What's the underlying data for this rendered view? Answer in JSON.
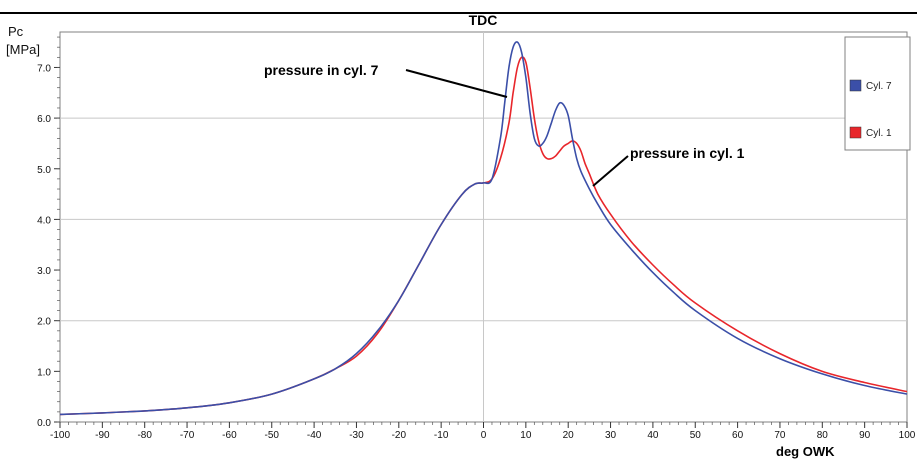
{
  "chart_data": {
    "type": "line",
    "title": "TDC",
    "ylabel_line1": "Pc",
    "ylabel_line2": "[MPa]",
    "xlabel": "deg  OWK",
    "xlim": [
      -100,
      100
    ],
    "ylim": [
      0,
      7.7
    ],
    "x_ticks": [
      {
        "value": -100,
        "label": "-100"
      },
      {
        "value": -90,
        "label": "-90"
      },
      {
        "value": -80,
        "label": "-80"
      },
      {
        "value": -70,
        "label": "-70"
      },
      {
        "value": -60,
        "label": "-60"
      },
      {
        "value": -50,
        "label": "-50"
      },
      {
        "value": -40,
        "label": "-40"
      },
      {
        "value": -30,
        "label": "-30"
      },
      {
        "value": -20,
        "label": "-20"
      },
      {
        "value": -10,
        "label": "-10"
      },
      {
        "value": 0,
        "label": "0"
      },
      {
        "value": 10,
        "label": "10"
      },
      {
        "value": 20,
        "label": "20"
      },
      {
        "value": 30,
        "label": "30"
      },
      {
        "value": 40,
        "label": "40"
      },
      {
        "value": 50,
        "label": "50"
      },
      {
        "value": 60,
        "label": "60"
      },
      {
        "value": 70,
        "label": "70"
      },
      {
        "value": 80,
        "label": "80"
      },
      {
        "value": 90,
        "label": "90"
      },
      {
        "value": 100,
        "label": "100"
      }
    ],
    "y_ticks": [
      {
        "value": 0,
        "label": "0.0"
      },
      {
        "value": 1,
        "label": "1.0"
      },
      {
        "value": 2,
        "label": "2.0"
      },
      {
        "value": 3,
        "label": "3.0"
      },
      {
        "value": 4,
        "label": "4.0"
      },
      {
        "value": 5,
        "label": "5.0"
      },
      {
        "value": 6,
        "label": "6.0"
      },
      {
        "value": 7,
        "label": "7.0"
      }
    ],
    "grid": {
      "x_major": [
        0
      ],
      "y_major": [
        2,
        4,
        6
      ]
    },
    "legend_position": "top-right",
    "series": [
      {
        "name": "Cyl. 7",
        "color": "#3b4fa8",
        "x": [
          -100,
          -90,
          -80,
          -70,
          -60,
          -50,
          -40,
          -35,
          -30,
          -25,
          -20,
          -15,
          -10,
          -5,
          -2,
          0,
          2,
          4,
          5,
          6,
          7,
          8,
          9,
          10,
          11,
          12,
          13,
          14,
          15,
          16,
          17,
          18,
          19,
          20,
          21,
          22,
          23,
          25,
          27,
          30,
          35,
          40,
          45,
          50,
          60,
          70,
          80,
          90,
          100
        ],
        "y": [
          0.15,
          0.18,
          0.22,
          0.28,
          0.38,
          0.55,
          0.85,
          1.05,
          1.35,
          1.8,
          2.4,
          3.15,
          3.9,
          4.5,
          4.7,
          4.72,
          4.8,
          5.6,
          6.3,
          7.0,
          7.4,
          7.5,
          7.3,
          6.8,
          6.1,
          5.6,
          5.45,
          5.5,
          5.65,
          5.9,
          6.15,
          6.3,
          6.25,
          6.05,
          5.6,
          5.2,
          4.95,
          4.6,
          4.3,
          3.9,
          3.4,
          2.95,
          2.55,
          2.2,
          1.65,
          1.25,
          0.95,
          0.72,
          0.55
        ]
      },
      {
        "name": "Cyl. 1",
        "color": "#e8262b",
        "x": [
          -100,
          -90,
          -80,
          -70,
          -60,
          -50,
          -40,
          -35,
          -30,
          -25,
          -20,
          -15,
          -10,
          -5,
          -2,
          0,
          2,
          4,
          6,
          7,
          8,
          9,
          10,
          11,
          12,
          13,
          14,
          15,
          16,
          17,
          18,
          19,
          20,
          21,
          22,
          23,
          24,
          25,
          27,
          30,
          35,
          40,
          45,
          50,
          60,
          70,
          80,
          90,
          100
        ],
        "y": [
          0.15,
          0.18,
          0.22,
          0.28,
          0.38,
          0.55,
          0.85,
          1.05,
          1.3,
          1.75,
          2.4,
          3.15,
          3.9,
          4.5,
          4.7,
          4.72,
          4.8,
          5.2,
          5.9,
          6.5,
          7.0,
          7.2,
          7.1,
          6.6,
          6.0,
          5.55,
          5.3,
          5.2,
          5.2,
          5.25,
          5.35,
          5.45,
          5.5,
          5.55,
          5.5,
          5.35,
          5.1,
          4.9,
          4.5,
          4.1,
          3.55,
          3.1,
          2.7,
          2.35,
          1.8,
          1.35,
          1.0,
          0.78,
          0.6
        ]
      }
    ],
    "annotations": [
      {
        "id": "ann7",
        "text": "pressure in cyl. 7"
      },
      {
        "id": "ann1",
        "text": "pressure in cyl. 1"
      }
    ]
  }
}
